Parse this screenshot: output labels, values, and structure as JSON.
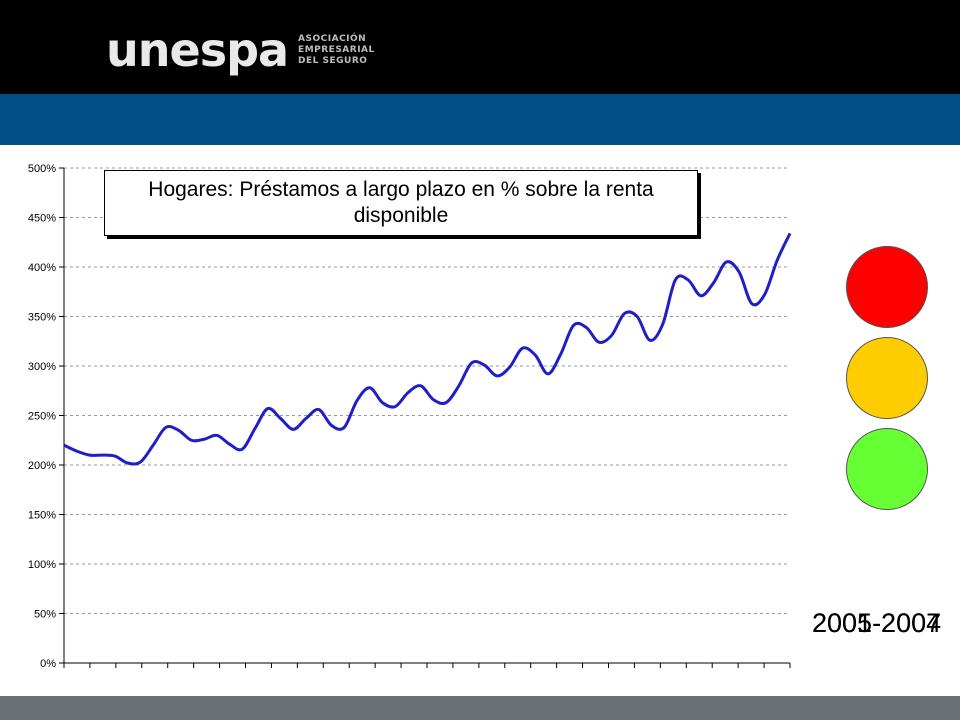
{
  "header": {
    "logo_text": "unespa",
    "logo_subtitle": [
      "ASOCIACIÓN",
      "EMPRESARIAL",
      "DEL SEGURO"
    ]
  },
  "colors": {
    "header_bg": "#000000",
    "accent_bar": "#004f86",
    "footer_bar": "#6a6f74",
    "line": "#1f1fc8",
    "light_red": "#ff0000",
    "light_amber": "#ffcc00",
    "light_green": "#66ff33"
  },
  "traffic_lights": [
    {
      "name": "red-light-icon",
      "color": "#ff0000"
    },
    {
      "name": "amber-light-icon",
      "color": "#ffcc00"
    },
    {
      "name": "green-light-icon",
      "color": "#66ff33"
    }
  ],
  "period_labels": [
    "2005-2007",
    "2001-2004"
  ],
  "chart_data": {
    "type": "line",
    "title": "Hogares: Préstamos a largo plazo en % sobre la renta disponible",
    "title_lines": [
      "Hogares: Préstamos a largo plazo en % sobre la renta",
      "disponible"
    ],
    "xlabel": "",
    "ylabel": "",
    "ylim": [
      0,
      500
    ],
    "y_ticks": [
      "0%",
      "50%",
      "100%",
      "150%",
      "200%",
      "250%",
      "300%",
      "350%",
      "400%",
      "450%",
      "500%"
    ],
    "grid": true,
    "x_tick_count": 28,
    "series": [
      {
        "values": [
          220,
          214,
          210,
          210,
          209,
          202,
          203,
          220,
          238,
          235,
          225,
          226,
          230,
          221,
          216,
          237,
          257,
          247,
          236,
          247,
          256,
          240,
          238,
          265,
          278,
          263,
          259,
          273,
          280,
          266,
          263,
          280,
          303,
          301,
          290,
          299,
          318,
          311,
          292,
          312,
          341,
          339,
          324,
          331,
          353,
          350,
          326,
          342,
          387,
          387,
          371,
          384,
          405,
          395,
          363,
          372,
          407,
          434
        ]
      }
    ]
  }
}
